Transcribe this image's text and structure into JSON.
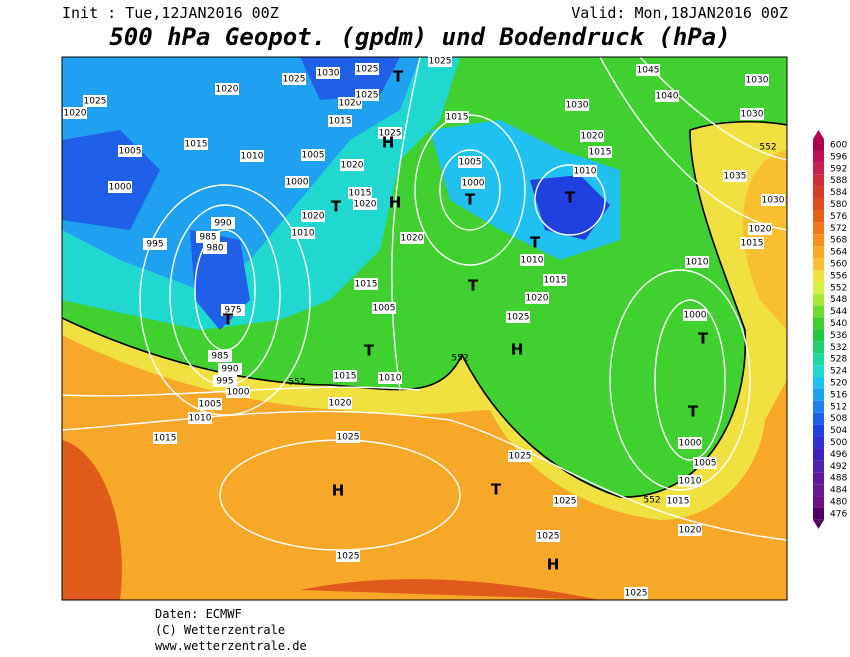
{
  "header": {
    "init": "Init : Tue,12JAN2016 00Z",
    "valid": "Valid: Mon,18JAN2016 00Z",
    "title": "500 hPa Geopot. (gpdm) und Bodendruck (hPa)"
  },
  "map": {
    "isobar_labels": [
      1025,
      1020,
      1005,
      1000,
      995,
      990,
      985,
      980,
      975,
      985,
      990,
      995,
      1000,
      1005,
      1010,
      1015,
      1020,
      1025,
      1025,
      1025,
      1025,
      1025,
      1020,
      1025,
      1015,
      1010,
      1005,
      1000,
      1000,
      1010,
      1015,
      1020,
      1025,
      1010,
      1015,
      1005,
      1000,
      1010,
      1015,
      1020,
      1030,
      1040,
      1045,
      1030,
      1030,
      1035,
      1030,
      1020,
      1015,
      1025,
      1025,
      1030,
      1025,
      1020,
      1020,
      1025,
      1015,
      1025,
      1005,
      1020,
      1000,
      1015,
      1020,
      1020,
      1010,
      1020,
      1015,
      1005,
      1015,
      1010,
      1010,
      1015
    ],
    "pressure_centers": [
      "H",
      "H",
      "H",
      "H",
      "H",
      "T",
      "T",
      "T",
      "T",
      "T",
      "T",
      "T",
      "T",
      "T",
      "T",
      "T"
    ],
    "contour_552_labels": [
      "552",
      "552",
      "552",
      "552"
    ]
  },
  "legend": {
    "ticks": [
      600,
      596,
      592,
      588,
      584,
      580,
      576,
      572,
      568,
      564,
      560,
      556,
      552,
      548,
      544,
      540,
      536,
      532,
      528,
      524,
      520,
      516,
      512,
      508,
      504,
      500,
      496,
      492,
      488,
      484,
      480,
      476
    ],
    "colors": [
      "#b0004e",
      "#c0105a",
      "#c82050",
      "#d02c3c",
      "#d83c28",
      "#e04c1c",
      "#e86018",
      "#f07818",
      "#f89020",
      "#f8a828",
      "#f8c030",
      "#f0e040",
      "#d8f040",
      "#a8e838",
      "#70dc30",
      "#40d030",
      "#20c840",
      "#20d070",
      "#20d8a0",
      "#20d8d0",
      "#20c0f0",
      "#20a0f0",
      "#2080f0",
      "#2060e8",
      "#2040e0",
      "#3030d0",
      "#4020c0",
      "#5020b0",
      "#6018a0",
      "#681890",
      "#701080",
      "#500060"
    ]
  },
  "footer": {
    "lines": [
      "Daten: ECMWF",
      "(C) Wetterzentrale",
      "www.wetterzentrale.de"
    ]
  }
}
